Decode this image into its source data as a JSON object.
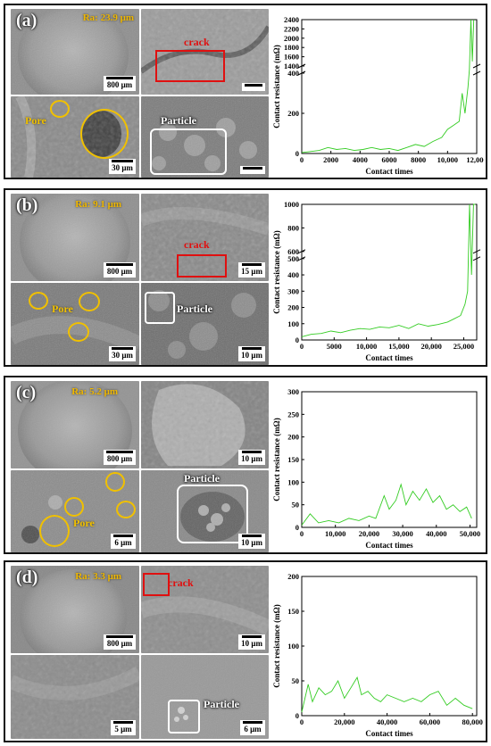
{
  "panels": [
    {
      "id": "a",
      "letter": "(a)",
      "ra": "Ra: 23.9 μm",
      "images": {
        "tl": {
          "scale": "800 μm"
        },
        "tr": {
          "annotation": "crack",
          "scale": ""
        },
        "bl": {
          "annotation": "Pore",
          "scale": "30 μm"
        },
        "br": {
          "annotation": "Particle",
          "scale": ""
        }
      },
      "chart_data": {
        "type": "line",
        "xlabel": "Contact times",
        "ylabel": "Contact resistance (mΩ)",
        "xlim": [
          0,
          12000
        ],
        "xticks": [
          "0",
          "2000",
          "4000",
          "6000",
          "8000",
          "10,000",
          "12,000"
        ],
        "xtick_values": [
          0,
          2000,
          4000,
          6000,
          8000,
          10000,
          12000
        ],
        "broken_axis": true,
        "lower_range": [
          0,
          400
        ],
        "lower_ticks": [
          "0",
          "200",
          "400"
        ],
        "upper_range": [
          1400,
          2400
        ],
        "upper_ticks": [
          "1400",
          "1600",
          "1800",
          "2000",
          "2200",
          "2400"
        ],
        "color": "#33cc22",
        "series": [
          {
            "x": [
              0,
              600,
              1200,
              1800,
              2400,
              3000,
              3600,
              4200,
              4800,
              5400,
              6000,
              6600,
              7200,
              7800,
              8400,
              9000,
              9600,
              10000,
              10400,
              10800,
              11000,
              11200,
              11400,
              11500,
              11600,
              11700,
              11800
            ],
            "values": [
              5,
              10,
              15,
              30,
              20,
              25,
              15,
              20,
              30,
              20,
              25,
              15,
              30,
              45,
              35,
              60,
              80,
              120,
              140,
              160,
              300,
              200,
              330,
              900,
              2400,
              1500,
              2400
            ]
          }
        ]
      }
    },
    {
      "id": "b",
      "letter": "(b)",
      "ra": "Ra: 9.1 μm",
      "images": {
        "tl": {
          "scale": "800 μm"
        },
        "tr": {
          "annotation": "crack",
          "scale": "15 μm"
        },
        "bl": {
          "annotation": "Pore",
          "scale": "30 μm"
        },
        "br": {
          "annotation": "Particle",
          "scale": "10 μm"
        }
      },
      "chart_data": {
        "type": "line",
        "xlabel": "Contact times",
        "ylabel": "Contact resistance (mΩ)",
        "xlim": [
          0,
          27000
        ],
        "xticks": [
          "0",
          "5000",
          "10,000",
          "15,000",
          "20,000",
          "25,000"
        ],
        "xtick_values": [
          0,
          5000,
          10000,
          15000,
          20000,
          25000
        ],
        "broken_axis": true,
        "lower_range": [
          0,
          500
        ],
        "lower_ticks": [
          "0",
          "100",
          "200",
          "300",
          "400",
          "500"
        ],
        "upper_range": [
          600,
          1000
        ],
        "upper_ticks": [
          "600",
          "800",
          "1000"
        ],
        "color": "#33cc22",
        "series": [
          {
            "x": [
              0,
              1500,
              3000,
              4500,
              6000,
              7500,
              9000,
              10500,
              12000,
              13500,
              15000,
              16500,
              18000,
              19500,
              21000,
              22500,
              23500,
              24500,
              25200,
              25600,
              25900,
              26200,
              26500,
              26800
            ],
            "values": [
              20,
              35,
              40,
              55,
              45,
              60,
              70,
              65,
              80,
              75,
              90,
              70,
              100,
              85,
              95,
              110,
              130,
              150,
              220,
              300,
              1000,
              400,
              1000,
              1000
            ]
          }
        ]
      }
    },
    {
      "id": "c",
      "letter": "(c)",
      "ra": "Ra: 5.2 μm",
      "images": {
        "tl": {
          "scale": "800 μm"
        },
        "tr": {
          "annotation": "",
          "scale": "10 μm"
        },
        "bl": {
          "annotation": "Pore",
          "scale": "6 μm"
        },
        "br": {
          "annotation": "Particle",
          "scale": "10 μm"
        }
      },
      "chart_data": {
        "type": "line",
        "xlabel": "Contact times",
        "ylabel": "Contact resistance (mΩ)",
        "xlim": [
          0,
          52000
        ],
        "ylim": [
          0,
          300
        ],
        "xticks": [
          "0",
          "10,000",
          "20,000",
          "30,000",
          "40,000",
          "50,000"
        ],
        "xtick_values": [
          0,
          10000,
          20000,
          30000,
          40000,
          50000
        ],
        "yticks": [
          "0",
          "50",
          "100",
          "150",
          "200",
          "250",
          "300"
        ],
        "ytick_values": [
          0,
          50,
          100,
          150,
          200,
          250,
          300
        ],
        "color": "#33cc22",
        "series": [
          {
            "x": [
              0,
              2500,
              5000,
              8000,
              11000,
              14000,
              17000,
              20000,
              22000,
              24500,
              26000,
              28000,
              29500,
              31000,
              33000,
              35000,
              37000,
              39000,
              41000,
              43000,
              45000,
              47000,
              49000,
              50500
            ],
            "values": [
              5,
              30,
              10,
              15,
              10,
              20,
              15,
              25,
              20,
              70,
              40,
              60,
              95,
              50,
              80,
              60,
              85,
              55,
              70,
              40,
              50,
              35,
              45,
              20
            ]
          }
        ]
      }
    },
    {
      "id": "d",
      "letter": "(d)",
      "ra": "Ra: 3.3 μm",
      "images": {
        "tl": {
          "scale": "800 μm"
        },
        "tr": {
          "annotation": "crack",
          "scale": "10 μm"
        },
        "bl": {
          "annotation": "",
          "scale": "5 μm"
        },
        "br": {
          "annotation": "Particle",
          "scale": "6 μm"
        }
      },
      "chart_data": {
        "type": "line",
        "xlabel": "Contact times",
        "ylabel": "Contact resistance (mΩ)",
        "xlim": [
          0,
          82000
        ],
        "ylim": [
          0,
          200
        ],
        "xticks": [
          "0",
          "20,000",
          "40,000",
          "60,000",
          "80,000"
        ],
        "xtick_values": [
          0,
          20000,
          40000,
          60000,
          80000
        ],
        "yticks": [
          "0",
          "50",
          "100",
          "150",
          "200"
        ],
        "ytick_values": [
          0,
          50,
          100,
          150,
          200
        ],
        "color": "#33cc22",
        "series": [
          {
            "x": [
              0,
              3000,
              5000,
              8000,
              11000,
              14000,
              17000,
              20000,
              23000,
              26000,
              28000,
              31000,
              34000,
              37000,
              40000,
              44000,
              48000,
              52000,
              56000,
              60000,
              64000,
              68000,
              72000,
              76000,
              80000
            ],
            "values": [
              5,
              45,
              20,
              40,
              30,
              35,
              50,
              25,
              40,
              55,
              30,
              35,
              25,
              20,
              30,
              25,
              20,
              25,
              20,
              30,
              35,
              15,
              25,
              15,
              10
            ]
          }
        ]
      }
    }
  ]
}
